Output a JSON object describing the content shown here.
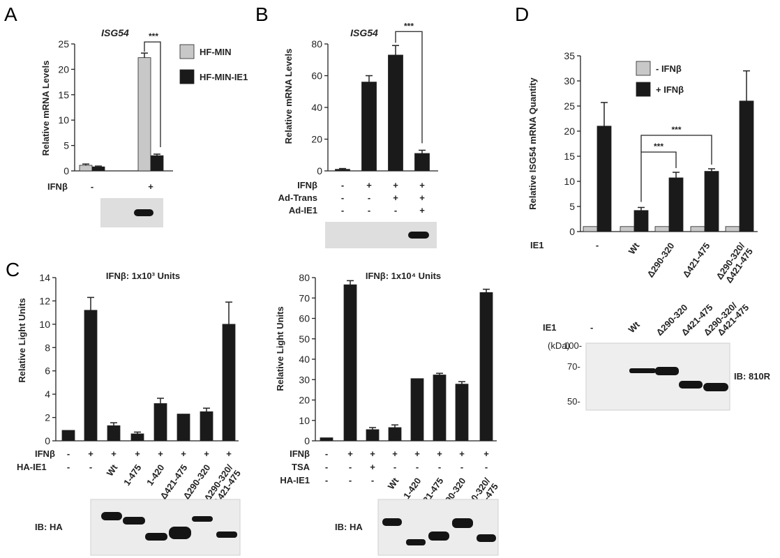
{
  "panel_labels": [
    "A",
    "B",
    "C",
    "D"
  ],
  "colors": {
    "gray_bar": "#c8c8c8",
    "black_bar": "#1a1a1a",
    "blot_bg": "#dcdcdc",
    "band": "#141414"
  },
  "significance": "***",
  "chart_data": [
    {
      "id": "A",
      "type": "bar",
      "title": "ISG54",
      "ylabel": "Relative mRNA Levels",
      "ylim": [
        0,
        25
      ],
      "yticks": [
        0,
        5,
        10,
        15,
        20,
        25
      ],
      "groups": [
        {
          "ifnb": "-"
        },
        {
          "ifnb": "+"
        }
      ],
      "condition_labels": [
        "IFNβ"
      ],
      "series": [
        {
          "name": "HF-MIN",
          "color": "#c8c8c8",
          "values": [
            1.1,
            22.3
          ],
          "errors": [
            0.25,
            0.9
          ]
        },
        {
          "name": "HF-MIN-IE1",
          "color": "#1a1a1a",
          "values": [
            0.8,
            3.0
          ],
          "errors": [
            0.15,
            0.3
          ]
        }
      ],
      "legend": "top-right",
      "annotation": "***"
    },
    {
      "id": "B",
      "type": "bar",
      "title": "ISG54",
      "ylabel": "Relative mRNA Levels",
      "ylim": [
        0,
        80
      ],
      "yticks": [
        0,
        20,
        40,
        60,
        80
      ],
      "values": [
        1,
        56,
        73,
        11
      ],
      "errors": [
        0.5,
        4,
        6,
        2
      ],
      "condition_labels": [
        "IFNβ",
        "Ad-Trans",
        "Ad-IE1"
      ],
      "conditions": [
        [
          "-",
          "+",
          "+",
          "+"
        ],
        [
          "-",
          "-",
          "+",
          "+"
        ],
        [
          "-",
          "-",
          "-",
          "+"
        ]
      ],
      "annotation": "***"
    },
    {
      "id": "C1",
      "type": "bar",
      "title": "IFNβ: 1x10³ Units",
      "ylabel": "Relative Light Units",
      "ylim": [
        0,
        14
      ],
      "yticks": [
        0,
        2,
        4,
        6,
        8,
        10,
        12,
        14
      ],
      "values": [
        0.9,
        11.2,
        1.3,
        0.6,
        3.2,
        2.3,
        2.5,
        10.0
      ],
      "errors": [
        0,
        1.1,
        0.25,
        0.15,
        0.45,
        0,
        0.3,
        1.9
      ],
      "condition_labels": [
        "IFNβ",
        "HA-IE1"
      ],
      "ifnb": [
        "-",
        "+",
        "+",
        "+",
        "+",
        "+",
        "+",
        "+"
      ],
      "ha_ie1": [
        "-",
        "-",
        "Wt",
        "1-475",
        "1-420",
        "Δ421-475",
        "Δ290-320",
        "Δ290-320/\nΔ421-475"
      ]
    },
    {
      "id": "C2",
      "type": "bar",
      "title": "IFNβ: 1x10⁴ Units",
      "ylabel": "Relative Light Units",
      "ylim": [
        0,
        80
      ],
      "yticks": [
        0,
        10,
        20,
        30,
        40,
        50,
        60,
        70,
        80
      ],
      "values": [
        1.5,
        76.5,
        5.5,
        6.5,
        30.5,
        32.3,
        27.8,
        72.7
      ],
      "errors": [
        0,
        2,
        1,
        1.3,
        0,
        0.8,
        1.2,
        1.6
      ],
      "condition_labels": [
        "IFNβ",
        "TSA",
        "HA-IE1"
      ],
      "ifnb": [
        "-",
        "+",
        "+",
        "+",
        "+",
        "+",
        "+",
        "+"
      ],
      "tsa": [
        "-",
        "-",
        "+",
        "-",
        "-",
        "-",
        "-",
        "-"
      ],
      "ha_ie1": [
        "-",
        "-",
        "-",
        "Wt",
        "1-420",
        "Δ421-475",
        "Δ290-320",
        "Δ290-320/\nΔ421-475"
      ]
    },
    {
      "id": "D",
      "type": "bar",
      "ylabel": "Relative ISG54 mRNA Quantity",
      "ylim": [
        0,
        35
      ],
      "yticks": [
        0,
        5,
        10,
        15,
        20,
        25,
        30,
        35
      ],
      "condition_labels": [
        "IE1"
      ],
      "categories": [
        "-",
        "Wt",
        "Δ290-320",
        "Δ421-475",
        "Δ290-320/\nΔ421-475"
      ],
      "series": [
        {
          "name": "- IFNβ",
          "color": "#c8c8c8",
          "values": [
            1,
            1,
            1,
            1,
            1
          ],
          "errors": [
            0,
            0,
            0,
            0,
            0
          ]
        },
        {
          "name": "+ IFNβ",
          "color": "#1a1a1a",
          "values": [
            21,
            4.2,
            10.7,
            12,
            26
          ],
          "errors": [
            4.7,
            0.6,
            1.1,
            0.5,
            6
          ]
        }
      ],
      "legend": "top-right",
      "annotations": [
        "***",
        "***"
      ]
    }
  ],
  "blots": {
    "C1": {
      "label": "IB: HA"
    },
    "C2": {
      "label": "IB: HA"
    },
    "D": {
      "label": "IB: 810R",
      "unit": "(kDa)",
      "ie1_label": "IE1",
      "markers": [
        "100-",
        "70-",
        "50-"
      ],
      "lanes": [
        "-",
        "Wt",
        "Δ290-320",
        "Δ421-475",
        "Δ290-320/\nΔ421-475"
      ]
    }
  }
}
